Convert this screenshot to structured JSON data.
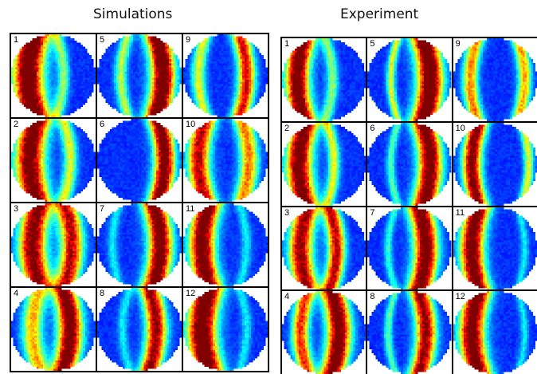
{
  "titles": {
    "left": "Simulations",
    "right": "Experiment"
  },
  "colors": {
    "background": "#3a62b8",
    "grid": "#000000"
  },
  "panels": [
    {
      "id": "simulations",
      "cells": [
        {
          "n": "1",
          "bands": [
            {
              "x": 0.2,
              "w": 0.18,
              "s": 1.0
            },
            {
              "x": 0.62,
              "w": 0.07,
              "s": 0.35
            }
          ]
        },
        {
          "n": "5",
          "bands": [
            {
              "x": 0.78,
              "w": 0.14,
              "s": 1.0
            },
            {
              "x": 0.28,
              "w": 0.07,
              "s": 0.4
            }
          ]
        },
        {
          "n": "9",
          "bands": [
            {
              "x": 0.75,
              "w": 0.1,
              "s": 0.75
            },
            {
              "x": 0.18,
              "w": 0.08,
              "s": 0.45
            }
          ]
        },
        {
          "n": "2",
          "bands": [
            {
              "x": 0.22,
              "w": 0.17,
              "s": 0.95
            },
            {
              "x": 0.7,
              "w": 0.08,
              "s": 0.45
            }
          ]
        },
        {
          "n": "6",
          "bands": [
            {
              "x": 0.8,
              "w": 0.12,
              "s": 0.95
            }
          ]
        },
        {
          "n": "10",
          "bands": [
            {
              "x": 0.18,
              "w": 0.13,
              "s": 0.8
            },
            {
              "x": 0.78,
              "w": 0.11,
              "s": 0.6
            }
          ]
        },
        {
          "n": "3",
          "bands": [
            {
              "x": 0.25,
              "w": 0.16,
              "s": 0.9
            },
            {
              "x": 0.72,
              "w": 0.13,
              "s": 0.8
            }
          ]
        },
        {
          "n": "7",
          "bands": [
            {
              "x": 0.75,
              "w": 0.14,
              "s": 0.95
            },
            {
              "x": 0.18,
              "w": 0.06,
              "s": 0.2
            }
          ]
        },
        {
          "n": "11",
          "bands": [
            {
              "x": 0.22,
              "w": 0.15,
              "s": 0.95
            },
            {
              "x": 0.75,
              "w": 0.06,
              "s": 0.2
            }
          ]
        },
        {
          "n": "4",
          "bands": [
            {
              "x": 0.25,
              "w": 0.12,
              "s": 0.55
            },
            {
              "x": 0.7,
              "w": 0.14,
              "s": 0.95
            }
          ]
        },
        {
          "n": "8",
          "bands": [
            {
              "x": 0.7,
              "w": 0.12,
              "s": 0.85
            },
            {
              "x": 0.3,
              "w": 0.06,
              "s": 0.2
            }
          ]
        },
        {
          "n": "12",
          "bands": [
            {
              "x": 0.22,
              "w": 0.17,
              "s": 1.0
            },
            {
              "x": 0.75,
              "w": 0.06,
              "s": 0.2
            }
          ]
        }
      ]
    },
    {
      "id": "experiment",
      "cells": [
        {
          "n": "1",
          "bands": [
            {
              "x": 0.18,
              "w": 0.14,
              "s": 0.95
            },
            {
              "x": 0.6,
              "w": 0.07,
              "s": 0.35
            }
          ]
        },
        {
          "n": "5",
          "bands": [
            {
              "x": 0.75,
              "w": 0.15,
              "s": 1.0
            },
            {
              "x": 0.28,
              "w": 0.05,
              "s": 0.45
            }
          ]
        },
        {
          "n": "9",
          "bands": [
            {
              "x": 0.2,
              "w": 0.09,
              "s": 0.6
            },
            {
              "x": 0.85,
              "w": 0.08,
              "s": 0.55
            }
          ]
        },
        {
          "n": "2",
          "bands": [
            {
              "x": 0.2,
              "w": 0.15,
              "s": 0.95
            },
            {
              "x": 0.62,
              "w": 0.07,
              "s": 0.45
            }
          ]
        },
        {
          "n": "6",
          "bands": [
            {
              "x": 0.75,
              "w": 0.14,
              "s": 0.95
            },
            {
              "x": 0.28,
              "w": 0.05,
              "s": 0.3
            }
          ]
        },
        {
          "n": "10",
          "bands": [
            {
              "x": 0.22,
              "w": 0.11,
              "s": 0.9
            },
            {
              "x": 0.9,
              "w": 0.06,
              "s": 0.45
            }
          ]
        },
        {
          "n": "3",
          "bands": [
            {
              "x": 0.22,
              "w": 0.14,
              "s": 0.85
            },
            {
              "x": 0.65,
              "w": 0.1,
              "s": 0.8
            }
          ]
        },
        {
          "n": "7",
          "bands": [
            {
              "x": 0.7,
              "w": 0.14,
              "s": 0.95
            },
            {
              "x": 0.25,
              "w": 0.05,
              "s": 0.25
            }
          ]
        },
        {
          "n": "11",
          "bands": [
            {
              "x": 0.22,
              "w": 0.14,
              "s": 0.95
            },
            {
              "x": 0.85,
              "w": 0.05,
              "s": 0.2
            }
          ]
        },
        {
          "n": "4",
          "bands": [
            {
              "x": 0.22,
              "w": 0.1,
              "s": 0.7
            },
            {
              "x": 0.68,
              "w": 0.14,
              "s": 0.95
            }
          ]
        },
        {
          "n": "8",
          "bands": [
            {
              "x": 0.7,
              "w": 0.12,
              "s": 0.85
            },
            {
              "x": 0.25,
              "w": 0.05,
              "s": 0.3
            }
          ]
        },
        {
          "n": "12",
          "bands": [
            {
              "x": 0.22,
              "w": 0.15,
              "s": 0.95
            },
            {
              "x": 0.85,
              "w": 0.05,
              "s": 0.2
            }
          ]
        }
      ]
    }
  ]
}
